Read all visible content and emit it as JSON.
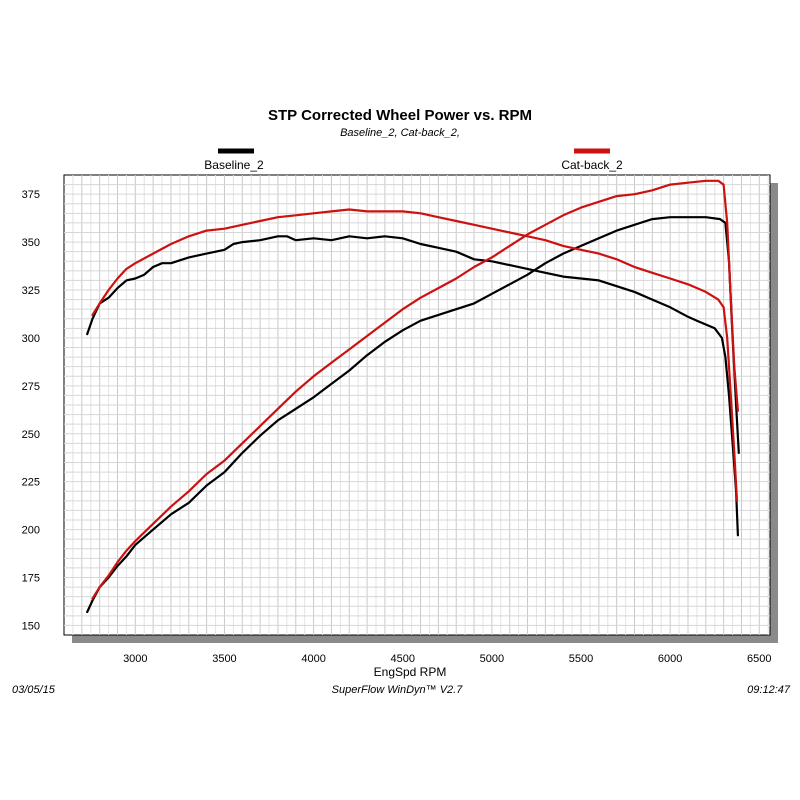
{
  "chart_data": {
    "type": "line",
    "title": "STP Corrected Wheel Power vs. RPM",
    "subtitle": "Baseline_2, Cat-back_2,",
    "xlabel": "EngSpd  RPM",
    "ylabel": "",
    "xlim": [
      2600,
      6560
    ],
    "ylim": [
      145,
      385
    ],
    "x_ticks": [
      3000,
      3500,
      4000,
      4500,
      5000,
      5500,
      6000,
      6500
    ],
    "y_ticks": [
      150,
      175,
      200,
      225,
      250,
      275,
      300,
      325,
      350,
      375
    ],
    "grid": true,
    "legend": [
      "Baseline_2",
      "Cat-back_2"
    ],
    "series": [
      {
        "name": "Baseline_2",
        "color": "#000000",
        "measure": "power",
        "points": [
          [
            2730,
            302
          ],
          [
            2760,
            310
          ],
          [
            2800,
            318
          ],
          [
            2850,
            321
          ],
          [
            2900,
            326
          ],
          [
            2950,
            330
          ],
          [
            3000,
            331
          ],
          [
            3050,
            333
          ],
          [
            3100,
            337
          ],
          [
            3150,
            339
          ],
          [
            3200,
            339
          ],
          [
            3300,
            342
          ],
          [
            3400,
            344
          ],
          [
            3500,
            346
          ],
          [
            3550,
            349
          ],
          [
            3600,
            350
          ],
          [
            3700,
            351
          ],
          [
            3800,
            353
          ],
          [
            3850,
            353
          ],
          [
            3900,
            351
          ],
          [
            4000,
            352
          ],
          [
            4100,
            351
          ],
          [
            4200,
            353
          ],
          [
            4300,
            352
          ],
          [
            4400,
            353
          ],
          [
            4500,
            352
          ],
          [
            4600,
            349
          ],
          [
            4700,
            347
          ],
          [
            4800,
            345
          ],
          [
            4900,
            341
          ],
          [
            5000,
            340
          ],
          [
            5100,
            338
          ],
          [
            5200,
            336
          ],
          [
            5300,
            334
          ],
          [
            5400,
            332
          ],
          [
            5500,
            331
          ],
          [
            5600,
            330
          ],
          [
            5700,
            327
          ],
          [
            5800,
            324
          ],
          [
            5900,
            320
          ],
          [
            6000,
            316
          ],
          [
            6100,
            311
          ],
          [
            6150,
            309
          ],
          [
            6200,
            307
          ],
          [
            6250,
            305
          ],
          [
            6290,
            300
          ],
          [
            6310,
            290
          ],
          [
            6330,
            270
          ],
          [
            6350,
            245
          ],
          [
            6370,
            220
          ],
          [
            6380,
            197
          ]
        ]
      },
      {
        "name": "Baseline_2",
        "color": "#000000",
        "measure": "torque",
        "points": [
          [
            2730,
            157
          ],
          [
            2760,
            163
          ],
          [
            2800,
            170
          ],
          [
            2850,
            175
          ],
          [
            2900,
            181
          ],
          [
            2950,
            186
          ],
          [
            3000,
            192
          ],
          [
            3100,
            200
          ],
          [
            3200,
            208
          ],
          [
            3300,
            214
          ],
          [
            3400,
            223
          ],
          [
            3500,
            230
          ],
          [
            3600,
            240
          ],
          [
            3700,
            249
          ],
          [
            3800,
            257
          ],
          [
            3900,
            263
          ],
          [
            4000,
            269
          ],
          [
            4100,
            276
          ],
          [
            4200,
            283
          ],
          [
            4300,
            291
          ],
          [
            4400,
            298
          ],
          [
            4500,
            304
          ],
          [
            4600,
            309
          ],
          [
            4700,
            312
          ],
          [
            4800,
            315
          ],
          [
            4900,
            318
          ],
          [
            5000,
            323
          ],
          [
            5100,
            328
          ],
          [
            5200,
            333
          ],
          [
            5300,
            339
          ],
          [
            5400,
            344
          ],
          [
            5500,
            348
          ],
          [
            5600,
            352
          ],
          [
            5700,
            356
          ],
          [
            5800,
            359
          ],
          [
            5900,
            362
          ],
          [
            6000,
            363
          ],
          [
            6100,
            363
          ],
          [
            6200,
            363
          ],
          [
            6280,
            362
          ],
          [
            6310,
            360
          ],
          [
            6330,
            340
          ],
          [
            6350,
            300
          ],
          [
            6370,
            265
          ],
          [
            6385,
            240
          ]
        ]
      },
      {
        "name": "Cat-back_2",
        "color": "#cc1111",
        "measure": "power",
        "points": [
          [
            2760,
            312
          ],
          [
            2800,
            318
          ],
          [
            2850,
            325
          ],
          [
            2900,
            331
          ],
          [
            2950,
            336
          ],
          [
            3000,
            339
          ],
          [
            3100,
            344
          ],
          [
            3200,
            349
          ],
          [
            3300,
            353
          ],
          [
            3400,
            356
          ],
          [
            3500,
            357
          ],
          [
            3600,
            359
          ],
          [
            3700,
            361
          ],
          [
            3800,
            363
          ],
          [
            3900,
            364
          ],
          [
            4000,
            365
          ],
          [
            4100,
            366
          ],
          [
            4200,
            367
          ],
          [
            4300,
            366
          ],
          [
            4400,
            366
          ],
          [
            4500,
            366
          ],
          [
            4600,
            365
          ],
          [
            4700,
            363
          ],
          [
            4800,
            361
          ],
          [
            4900,
            359
          ],
          [
            5000,
            357
          ],
          [
            5100,
            355
          ],
          [
            5200,
            353
          ],
          [
            5300,
            351
          ],
          [
            5400,
            348
          ],
          [
            5500,
            346
          ],
          [
            5600,
            344
          ],
          [
            5700,
            341
          ],
          [
            5800,
            337
          ],
          [
            5900,
            334
          ],
          [
            6000,
            331
          ],
          [
            6100,
            328
          ],
          [
            6200,
            324
          ],
          [
            6270,
            320
          ],
          [
            6300,
            316
          ],
          [
            6320,
            300
          ],
          [
            6340,
            270
          ],
          [
            6360,
            240
          ],
          [
            6375,
            215
          ]
        ]
      },
      {
        "name": "Cat-back_2",
        "color": "#cc1111",
        "measure": "torque",
        "points": [
          [
            2760,
            164
          ],
          [
            2800,
            170
          ],
          [
            2850,
            176
          ],
          [
            2900,
            183
          ],
          [
            2950,
            189
          ],
          [
            3000,
            194
          ],
          [
            3100,
            203
          ],
          [
            3200,
            212
          ],
          [
            3300,
            220
          ],
          [
            3400,
            229
          ],
          [
            3500,
            236
          ],
          [
            3600,
            245
          ],
          [
            3700,
            254
          ],
          [
            3800,
            263
          ],
          [
            3900,
            272
          ],
          [
            4000,
            280
          ],
          [
            4100,
            287
          ],
          [
            4200,
            294
          ],
          [
            4300,
            301
          ],
          [
            4400,
            308
          ],
          [
            4500,
            315
          ],
          [
            4600,
            321
          ],
          [
            4700,
            326
          ],
          [
            4800,
            331
          ],
          [
            4900,
            337
          ],
          [
            5000,
            342
          ],
          [
            5100,
            348
          ],
          [
            5200,
            354
          ],
          [
            5300,
            359
          ],
          [
            5400,
            364
          ],
          [
            5500,
            368
          ],
          [
            5600,
            371
          ],
          [
            5700,
            374
          ],
          [
            5800,
            375
          ],
          [
            5900,
            377
          ],
          [
            6000,
            380
          ],
          [
            6100,
            381
          ],
          [
            6200,
            382
          ],
          [
            6270,
            382
          ],
          [
            6300,
            380
          ],
          [
            6320,
            360
          ],
          [
            6340,
            320
          ],
          [
            6360,
            285
          ],
          [
            6380,
            262
          ]
        ]
      }
    ]
  },
  "footer": {
    "date": "03/05/15",
    "software": "SuperFlow WinDyn™ V2.7",
    "time": "09:12:47"
  }
}
